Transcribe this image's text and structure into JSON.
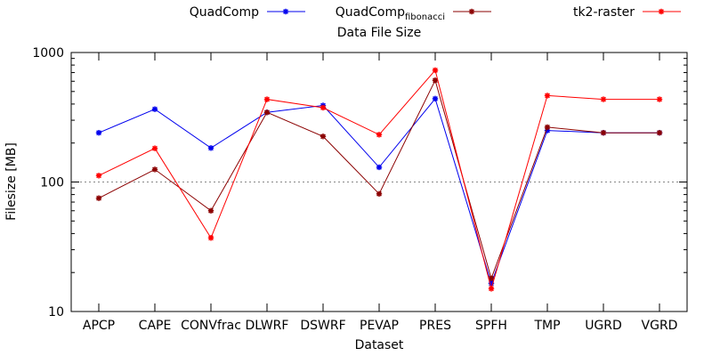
{
  "chart_data": {
    "type": "line",
    "title": "Data File Size",
    "xlabel": "Dataset",
    "ylabel": "Filesize [MB]",
    "yscale": "log",
    "ylim": [
      10,
      1000
    ],
    "yticks": [
      "10",
      "100",
      "1000"
    ],
    "grid_line_y": 100,
    "legend": "top",
    "categories": [
      "APCP",
      "CAPE",
      "CONVfrac",
      "DLWRF",
      "DSWRF",
      "PEVAP",
      "PRES",
      "SPFH",
      "TMP",
      "UGRD",
      "VGRD"
    ],
    "series": [
      {
        "name": "QuadComp",
        "name_sub": "",
        "color": "#0000ee",
        "values": [
          240,
          365,
          183,
          345,
          390,
          130,
          440,
          16.5,
          250,
          240,
          240
        ]
      },
      {
        "name": "QuadComp",
        "name_sub": "fibonacci",
        "color": "#8b0000",
        "values": [
          75,
          125,
          60,
          345,
          225,
          81,
          610,
          18,
          265,
          240,
          240
        ]
      },
      {
        "name": "tk2-raster",
        "name_sub": "",
        "color": "#ff0000",
        "values": [
          112,
          182,
          37,
          435,
          375,
          232,
          730,
          15,
          465,
          435,
          435
        ]
      }
    ]
  }
}
